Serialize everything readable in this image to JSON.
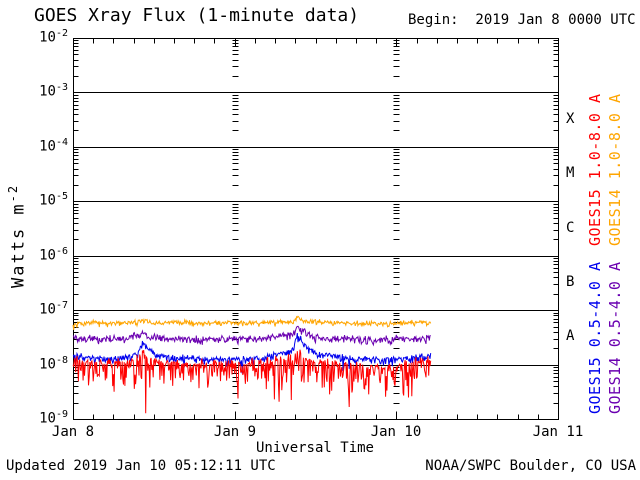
{
  "header": {
    "title": "GOES Xray Flux (1-minute data)",
    "begin": "Begin:  2019 Jan 8 0000 UTC"
  },
  "footer": {
    "updated": "Updated 2019 Jan 10 05:12:11 UTC",
    "source": "NOAA/SWPC Boulder, CO USA"
  },
  "chart_data": {
    "type": "line",
    "title": "GOES Xray Flux (1-minute data)",
    "xlabel": "Universal Time",
    "ylabel": "Watts m^-2",
    "x_axis": {
      "start": "2019 Jan 8 0000 UTC",
      "end": "2019 Jan 11 0000 UTC",
      "tick_labels": [
        "Jan 8",
        "Jan 9",
        "Jan 10",
        "Jan 11"
      ],
      "tick_hours": [
        0,
        24,
        48,
        72
      ],
      "minor_tick_interval_hours": 3,
      "range_hours": [
        0,
        72
      ]
    },
    "y_axis": {
      "scale": "log",
      "unit": "Watts m^-2",
      "tick_exponents": [
        -2,
        -3,
        -4,
        -5,
        -6,
        -7,
        -8,
        -9
      ],
      "range_log10": [
        -9,
        -2
      ]
    },
    "flare_classes": [
      {
        "label": "X",
        "log10_center": -3.5
      },
      {
        "label": "M",
        "log10_center": -4.5
      },
      {
        "label": "C",
        "log10_center": -5.5
      },
      {
        "label": "B",
        "log10_center": -6.5
      },
      {
        "label": "A",
        "log10_center": -7.5
      }
    ],
    "grid": {
      "horizontal_lines_at_decades": true,
      "vertical_dashed_at_hours": [
        24,
        48
      ]
    },
    "data_end_hour": 53.2,
    "series": [
      {
        "name": "GOES15 1.0-8.0 A",
        "satellite": "GOES15",
        "band": "1.0-8.0 A",
        "color": "#ff0000",
        "keypoints_hours_log10flux": [
          [
            0,
            -7.92
          ],
          [
            2,
            -7.98
          ],
          [
            5,
            -8.0
          ],
          [
            8,
            -7.97
          ],
          [
            9.8,
            -7.88
          ],
          [
            10.3,
            -7.8
          ],
          [
            11,
            -7.9
          ],
          [
            13,
            -7.98
          ],
          [
            16,
            -8.0
          ],
          [
            20,
            -8.02
          ],
          [
            24,
            -8.0
          ],
          [
            28,
            -8.0
          ],
          [
            32.5,
            -7.9
          ],
          [
            33.3,
            -7.76
          ],
          [
            34.5,
            -7.92
          ],
          [
            36,
            -7.98
          ],
          [
            40,
            -8.02
          ],
          [
            43,
            -8.06
          ],
          [
            46,
            -8.09
          ],
          [
            48,
            -8.05
          ],
          [
            50,
            -8.0
          ],
          [
            53.2,
            -7.94
          ]
        ],
        "noise_log10": {
          "up": 0.1,
          "down": 0.45,
          "spike_prob": 0.045,
          "spike_depth": 0.5
        }
      },
      {
        "name": "GOES14 1.0-8.0 A",
        "satellite": "GOES14",
        "band": "1.0-8.0 A",
        "color": "#ffa500",
        "keypoints_hours_log10flux": [
          [
            0,
            -7.3
          ],
          [
            1,
            -7.24
          ],
          [
            3,
            -7.22
          ],
          [
            6,
            -7.26
          ],
          [
            9,
            -7.22
          ],
          [
            10.4,
            -7.19
          ],
          [
            12,
            -7.24
          ],
          [
            16,
            -7.22
          ],
          [
            20,
            -7.24
          ],
          [
            24,
            -7.23
          ],
          [
            28,
            -7.24
          ],
          [
            32.6,
            -7.21
          ],
          [
            33.3,
            -7.14
          ],
          [
            34.5,
            -7.2
          ],
          [
            38,
            -7.23
          ],
          [
            42,
            -7.24
          ],
          [
            46,
            -7.25
          ],
          [
            50,
            -7.23
          ],
          [
            53.2,
            -7.22
          ]
        ],
        "noise_log10": {
          "up": 0.045,
          "down": 0.055,
          "spike_prob": 0,
          "spike_depth": 0
        }
      },
      {
        "name": "GOES15 0.5-4.0 A",
        "satellite": "GOES15",
        "band": "0.5-4.0 A",
        "color": "#0000ee",
        "keypoints_hours_log10flux": [
          [
            0,
            -7.84
          ],
          [
            2,
            -7.88
          ],
          [
            6,
            -7.9
          ],
          [
            9.5,
            -7.8
          ],
          [
            10.3,
            -7.59
          ],
          [
            11,
            -7.71
          ],
          [
            12.5,
            -7.83
          ],
          [
            16,
            -7.88
          ],
          [
            20,
            -7.9
          ],
          [
            24,
            -7.9
          ],
          [
            28,
            -7.9
          ],
          [
            32.5,
            -7.74
          ],
          [
            33.3,
            -7.45
          ],
          [
            34,
            -7.59
          ],
          [
            35,
            -7.71
          ],
          [
            36.5,
            -7.81
          ],
          [
            40,
            -7.87
          ],
          [
            44,
            -7.9
          ],
          [
            47,
            -7.92
          ],
          [
            50,
            -7.88
          ],
          [
            53.2,
            -7.84
          ]
        ],
        "noise_log10": {
          "up": 0.055,
          "down": 0.11,
          "spike_prob": 0.01,
          "spike_depth": 0.15
        }
      },
      {
        "name": "GOES14 0.5-4.0 A",
        "satellite": "GOES14",
        "band": "0.5-4.0 A",
        "color": "#6a00b0",
        "keypoints_hours_log10flux": [
          [
            0,
            -7.5
          ],
          [
            4,
            -7.54
          ],
          [
            8,
            -7.5
          ],
          [
            10.2,
            -7.44
          ],
          [
            11,
            -7.48
          ],
          [
            14,
            -7.52
          ],
          [
            18,
            -7.53
          ],
          [
            24,
            -7.52
          ],
          [
            28,
            -7.53
          ],
          [
            32.6,
            -7.44
          ],
          [
            33.3,
            -7.32
          ],
          [
            34,
            -7.38
          ],
          [
            35.5,
            -7.47
          ],
          [
            38,
            -7.52
          ],
          [
            42,
            -7.53
          ],
          [
            45,
            -7.55
          ],
          [
            48,
            -7.53
          ],
          [
            51,
            -7.52
          ],
          [
            53.2,
            -7.5
          ]
        ],
        "noise_log10": {
          "up": 0.06,
          "down": 0.09,
          "spike_prob": 0,
          "spike_depth": 0
        }
      }
    ],
    "legend": {
      "position": "right-rotated",
      "entries": [
        "GOES15 1.0-8.0 A",
        "GOES14 1.0-8.0 A",
        "GOES15 0.5-4.0 A",
        "GOES14 0.5-4.0 A"
      ]
    }
  }
}
